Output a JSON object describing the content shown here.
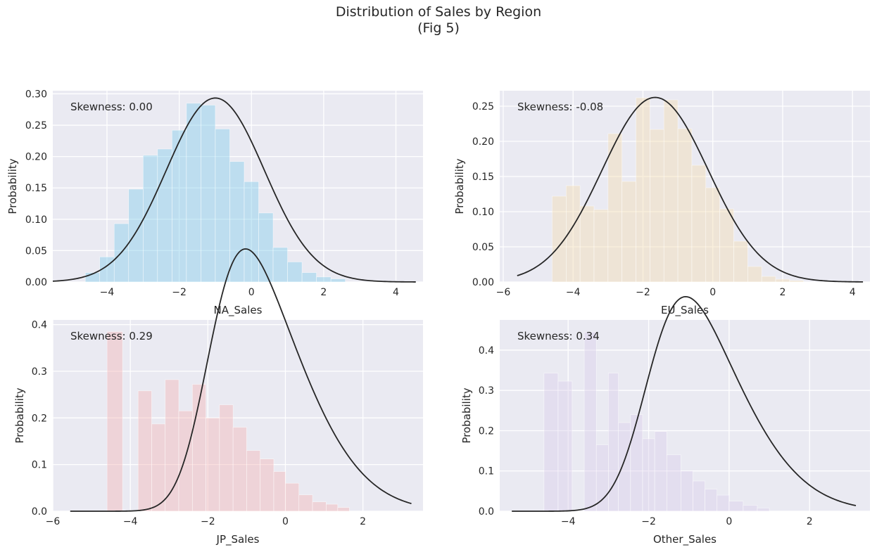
{
  "figure": {
    "title": "Distribution of Sales by Region",
    "subtitle": "(Fig 5)"
  },
  "chart_data": [
    {
      "type": "bar",
      "xlabel": "NA_Sales",
      "ylabel": "Probability",
      "annotation": "Skewness: 0.00",
      "color": "#87ceeb",
      "xlim": [
        -5.5,
        4.75
      ],
      "ylim": [
        0,
        0.305
      ],
      "xticks": [
        -4,
        -2,
        0,
        2,
        4
      ],
      "yticks": [
        "0.00",
        "0.05",
        "0.10",
        "0.15",
        "0.20",
        "0.25",
        "0.30"
      ],
      "bin_edges": [
        -4.6,
        -4.2,
        -3.8,
        -3.4,
        -3.0,
        -2.6,
        -2.2,
        -1.8,
        -1.4,
        -1.0,
        -0.6,
        -0.2,
        0.2,
        0.6,
        1.0,
        1.4,
        1.8,
        2.2,
        2.6
      ],
      "values": [
        0.015,
        0.04,
        0.093,
        0.148,
        0.202,
        0.212,
        0.242,
        0.285,
        0.282,
        0.244,
        0.192,
        0.16,
        0.11,
        0.055,
        0.032,
        0.015,
        0.008,
        0.005
      ],
      "fit": {
        "mean": -1.0,
        "std": 1.36,
        "scale": 1.0,
        "skew": 0,
        "xrange": [
          -5.5,
          4.55
        ]
      },
      "grid": true
    },
    {
      "type": "bar",
      "xlabel": "EU_Sales",
      "ylabel": "Probability",
      "annotation": "Skewness: -0.08",
      "color": "#f5deb3",
      "xlim": [
        -6.1,
        4.5
      ],
      "ylim": [
        0,
        0.272
      ],
      "xticks": [
        -6,
        -4,
        -2,
        0,
        2,
        4
      ],
      "yticks": [
        "0.00",
        "0.05",
        "0.10",
        "0.15",
        "0.20",
        "0.25"
      ],
      "bin_edges": [
        -4.6,
        -4.2,
        -3.8,
        -3.4,
        -3.0,
        -2.6,
        -2.2,
        -1.8,
        -1.4,
        -1.0,
        -0.6,
        -0.2,
        0.2,
        0.6,
        1.0,
        1.4,
        1.8,
        2.2,
        2.6
      ],
      "values": [
        0.122,
        0.137,
        0.108,
        0.103,
        0.211,
        0.143,
        0.262,
        0.217,
        0.259,
        0.218,
        0.166,
        0.134,
        0.104,
        0.058,
        0.022,
        0.008,
        0.004,
        0.002
      ],
      "fit": {
        "mean": -1.65,
        "std": 1.52,
        "scale": 1.0,
        "skew": 0,
        "xrange": [
          -5.6,
          4.3
        ]
      },
      "grid": true
    },
    {
      "type": "bar",
      "xlabel": "JP_Sales",
      "ylabel": "Probability",
      "annotation": "Skewness: 0.29",
      "color": "#f4b8b8",
      "xlim": [
        -6.0,
        3.55
      ],
      "ylim": [
        0,
        0.41
      ],
      "xticks": [
        -6,
        -4,
        -2,
        0,
        2
      ],
      "yticks": [
        "0.0",
        "0.1",
        "0.2",
        "0.3",
        "0.4"
      ],
      "bin_edges": [
        -4.6,
        -4.2,
        -3.8,
        -3.45,
        -3.1,
        -2.75,
        -2.4,
        -2.05,
        -1.7,
        -1.35,
        -1.0,
        -0.65,
        -0.3,
        0.0,
        0.35,
        0.7,
        1.05,
        1.35,
        1.65
      ],
      "values": [
        0.385,
        0,
        0.258,
        0.187,
        0.282,
        0.215,
        0.272,
        0.2,
        0.228,
        0.18,
        0.13,
        0.112,
        0.085,
        0.06,
        0.035,
        0.02,
        0.015,
        0.008
      ],
      "fit": {
        "mean": -1.95,
        "std": 1.9,
        "scale": 1.65,
        "skew": 2.8,
        "xrange": [
          -5.55,
          3.25
        ]
      },
      "grid": true
    },
    {
      "type": "bar",
      "xlabel": "Other_Sales",
      "ylabel": "Probability",
      "annotation": "Skewness: 0.34",
      "color": "#dcd0ec",
      "xlim": [
        -5.7,
        3.5
      ],
      "ylim": [
        0,
        0.475
      ],
      "xticks": [
        -4,
        -2,
        0,
        2
      ],
      "yticks": [
        "0.0",
        "0.1",
        "0.2",
        "0.3",
        "0.4"
      ],
      "bin_edges": [
        -4.6,
        -4.25,
        -3.9,
        -3.6,
        -3.3,
        -3.0,
        -2.75,
        -2.45,
        -2.15,
        -1.85,
        -1.55,
        -1.2,
        -0.9,
        -0.6,
        -0.3,
        0.0,
        0.35,
        0.7,
        1.0
      ],
      "values": [
        0.343,
        0.323,
        0,
        0.445,
        0.165,
        0.343,
        0.22,
        0.24,
        0.18,
        0.198,
        0.14,
        0.1,
        0.075,
        0.055,
        0.04,
        0.025,
        0.015,
        0.008
      ],
      "fit": {
        "mean": -2.0,
        "std": 1.85,
        "scale": 1.55,
        "skew": 2.6,
        "xrange": [
          -5.4,
          3.15
        ]
      },
      "grid": true
    }
  ]
}
